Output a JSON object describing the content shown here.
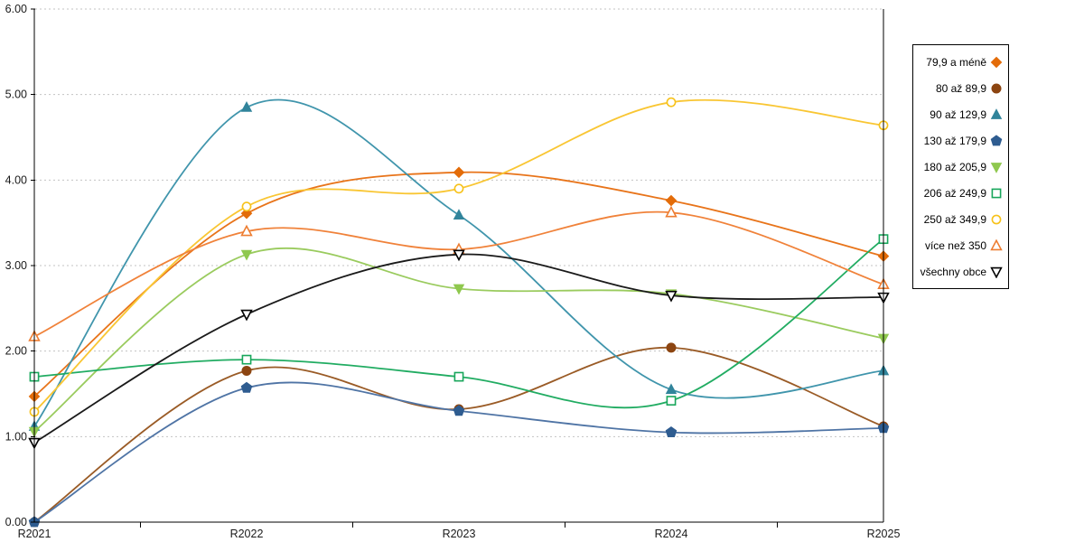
{
  "chart_data": {
    "type": "line",
    "title": "",
    "xlabel": "",
    "ylabel": "",
    "ylim": [
      0,
      6
    ],
    "grid": "horizontal-dotted",
    "legend_position": "right",
    "smoothed_lines": true,
    "categories": [
      "R2021",
      "R2022",
      "R2023",
      "R2024",
      "R2025"
    ],
    "y_tick_labels": [
      "6.00",
      "5.00",
      "4.00",
      "3.00",
      "2.00",
      "1.00",
      "0.00"
    ],
    "series": [
      {
        "name": "79,9 a méně",
        "marker": "diamond",
        "filled": true,
        "color": "#E36C09",
        "line_color": "#E8741A",
        "values": [
          1.47,
          3.61,
          4.09,
          3.76,
          3.11
        ]
      },
      {
        "name": "80 až 89,9",
        "marker": "circle",
        "filled": true,
        "color": "#8C4511",
        "line_color": "#9A5B26",
        "values": [
          0.0,
          1.77,
          1.32,
          2.04,
          1.12
        ]
      },
      {
        "name": "90 až 129,9",
        "marker": "triangle-up",
        "filled": true,
        "color": "#31849B",
        "line_color": "#4095AC",
        "values": [
          1.12,
          4.85,
          3.59,
          1.55,
          1.77
        ]
      },
      {
        "name": "130 až 179,9",
        "marker": "pentagon",
        "filled": true,
        "color": "#2E5C90",
        "line_color": "#4F74A5",
        "values": [
          0.0,
          1.57,
          1.3,
          1.05,
          1.1
        ]
      },
      {
        "name": "180 až 205,9",
        "marker": "triangle-down",
        "filled": true,
        "color": "#8FC84E",
        "line_color": "#9ACB5E",
        "values": [
          1.06,
          3.13,
          2.73,
          2.67,
          2.15
        ]
      },
      {
        "name": "206 až 249,9",
        "marker": "square-open",
        "filled": false,
        "color": "#18A65B",
        "line_color": "#21AC62",
        "values": [
          1.7,
          1.9,
          1.7,
          1.42,
          3.31
        ]
      },
      {
        "name": "250 až 349,9",
        "marker": "circle-open",
        "filled": false,
        "color": "#F7C21A",
        "line_color": "#F9C633",
        "values": [
          1.29,
          3.69,
          3.9,
          4.91,
          4.64
        ]
      },
      {
        "name": "více než 350",
        "marker": "triangle-up-open",
        "filled": false,
        "color": "#ED7D31",
        "line_color": "#F0823A",
        "values": [
          2.17,
          3.4,
          3.19,
          3.62,
          2.78
        ]
      },
      {
        "name": "všechny obce",
        "marker": "triangle-down-open",
        "filled": false,
        "color": "#000000",
        "line_color": "#1A1A1A",
        "values": [
          0.93,
          2.43,
          3.13,
          2.65,
          2.63
        ]
      }
    ],
    "colors": {
      "gridline": "#C3C3C3",
      "axis": "#000000",
      "background": "#FFFFFF"
    }
  }
}
